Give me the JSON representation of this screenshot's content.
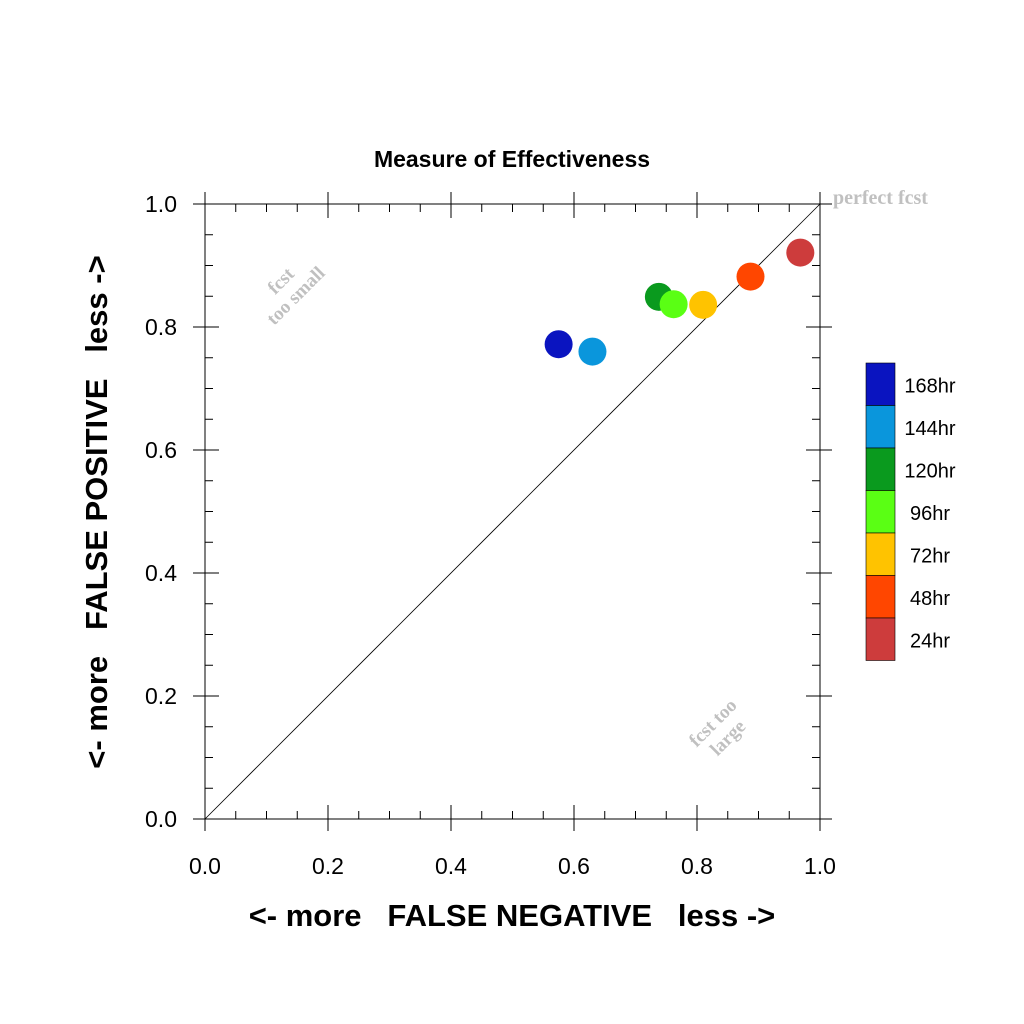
{
  "chart_data": {
    "type": "scatter",
    "title": "Measure of Effectiveness",
    "xlabel": "<- more   FALSE NEGATIVE   less ->",
    "ylabel": "<- more   FALSE POSITIVE   less ->",
    "xlim": [
      0.0,
      1.0
    ],
    "ylim": [
      0.0,
      1.0
    ],
    "xticks": [
      "0.0",
      "0.2",
      "0.4",
      "0.6",
      "0.8",
      "1.0"
    ],
    "yticks": [
      "0.0",
      "0.2",
      "0.4",
      "0.6",
      "0.8",
      "1.0"
    ],
    "grid": false,
    "legend_position": "right",
    "diagonal_line": true,
    "annotations": {
      "perfect": "perfect fcst",
      "too_small_1": "fcst",
      "too_small_2": "too small",
      "too_large_1": "fcst too",
      "too_large_2": "large"
    },
    "series": [
      {
        "name": "168hr",
        "color": "#0a14c0",
        "x": 0.575,
        "y": 0.772
      },
      {
        "name": "144hr",
        "color": "#0a96dc",
        "x": 0.63,
        "y": 0.76
      },
      {
        "name": "120hr",
        "color": "#0a9a1e",
        "x": 0.738,
        "y": 0.849
      },
      {
        "name": "96hr",
        "color": "#5aff14",
        "x": 0.762,
        "y": 0.837
      },
      {
        "name": "72hr",
        "color": "#ffc300",
        "x": 0.81,
        "y": 0.836
      },
      {
        "name": "48hr",
        "color": "#ff4600",
        "x": 0.887,
        "y": 0.882
      },
      {
        "name": "24hr",
        "color": "#cd3c3c",
        "x": 0.968,
        "y": 0.921
      }
    ]
  }
}
